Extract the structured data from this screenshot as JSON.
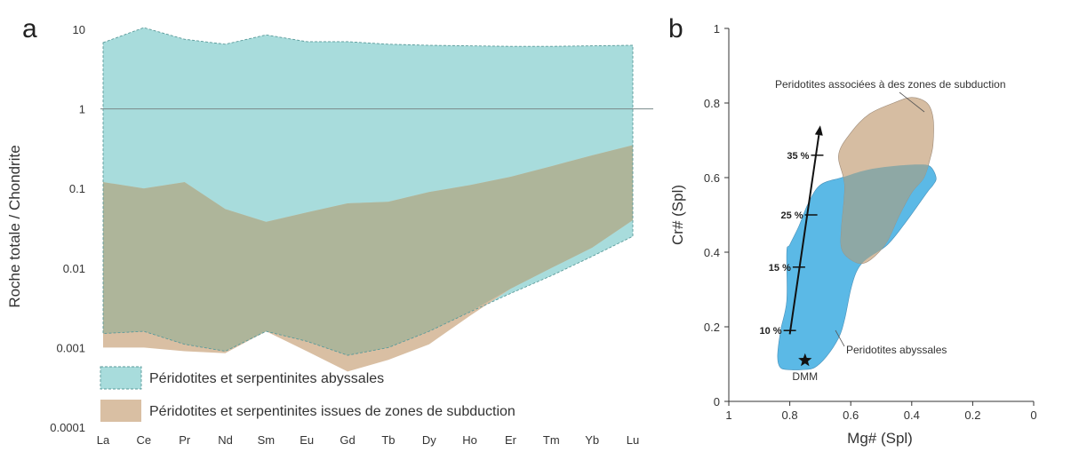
{
  "colors": {
    "abyssal_fill": "#a8dcdc",
    "abyssal_edge": "#5a9a9a",
    "subduction_fill": "#d9bfa3",
    "overlap_fill": "#aeb59a",
    "abyssal_b_fill": "#5bb9e6",
    "subduction_b_fill": "#d6bda2",
    "overlap_b_fill": "#8ea8a5",
    "reference_line": "#7a8a8a"
  },
  "panel_a": {
    "letter": "a",
    "chart_data": {
      "type": "area",
      "ylabel": "Roche totale / Chondrite",
      "xlabel": "",
      "yscale": "log",
      "ylim": [
        0.0001,
        10
      ],
      "yticks": [
        "10",
        "1",
        "0.1",
        "0.01",
        "0.001",
        "0.0001"
      ],
      "categories": [
        "La",
        "Ce",
        "Pr",
        "Nd",
        "Sm",
        "Eu",
        "Gd",
        "Tb",
        "Dy",
        "Ho",
        "Er",
        "Tm",
        "Yb",
        "Lu"
      ],
      "reference_line_y": 1,
      "series": [
        {
          "name": "Péridotites et serpentinites abyssales",
          "upper": [
            6.8,
            10.5,
            7.5,
            6.5,
            8.5,
            7,
            7,
            6.5,
            6.3,
            6.2,
            6.1,
            6.1,
            6.2,
            6.3
          ],
          "lower": [
            0.0015,
            0.0016,
            0.0011,
            0.0009,
            0.0016,
            0.0012,
            0.0008,
            0.001,
            0.0016,
            0.0028,
            0.0048,
            0.008,
            0.014,
            0.025
          ]
        },
        {
          "name": "Péridotites et serpentinites issues de zones de subduction",
          "upper": [
            0.12,
            0.1,
            0.12,
            0.055,
            0.038,
            0.05,
            0.065,
            0.068,
            0.09,
            0.11,
            0.14,
            0.19,
            0.26,
            0.35
          ],
          "lower": [
            0.001,
            0.001,
            0.0009,
            0.00085,
            0.0016,
            0.0009,
            0.0005,
            0.0007,
            0.0011,
            0.0025,
            0.0055,
            0.01,
            0.018,
            0.04
          ]
        }
      ],
      "legend": [
        "Péridotites et serpentinites abyssales",
        "Péridotites et serpentinites issues de zones de subduction"
      ],
      "legend_position": "bottom-left"
    }
  },
  "panel_b": {
    "letter": "b",
    "chart_data": {
      "type": "area",
      "xlabel": "Mg# (Spl)",
      "ylabel": "Cr# (Spl)",
      "xlim": [
        1,
        0
      ],
      "ylim": [
        0,
        1
      ],
      "xticks": [
        "1",
        "0.8",
        "0.6",
        "0.4",
        "0.2",
        "0"
      ],
      "yticks": [
        "0",
        "0.2",
        "0.4",
        "0.6",
        "0.8",
        "1"
      ],
      "fields": [
        {
          "name": "Peridotites abyssales",
          "outline": [
            [
              0.84,
              0.12
            ],
            [
              0.83,
              0.19
            ],
            [
              0.81,
              0.27
            ],
            [
              0.81,
              0.4
            ],
            [
              0.8,
              0.42
            ],
            [
              0.77,
              0.47
            ],
            [
              0.74,
              0.53
            ],
            [
              0.7,
              0.58
            ],
            [
              0.63,
              0.6
            ],
            [
              0.55,
              0.62
            ],
            [
              0.47,
              0.63
            ],
            [
              0.38,
              0.635
            ],
            [
              0.34,
              0.63
            ],
            [
              0.32,
              0.6
            ],
            [
              0.33,
              0.58
            ],
            [
              0.35,
              0.56
            ],
            [
              0.42,
              0.48
            ],
            [
              0.48,
              0.42
            ],
            [
              0.55,
              0.38
            ],
            [
              0.58,
              0.35
            ],
            [
              0.6,
              0.3
            ],
            [
              0.62,
              0.22
            ],
            [
              0.64,
              0.17
            ],
            [
              0.68,
              0.12
            ],
            [
              0.72,
              0.09
            ],
            [
              0.76,
              0.085
            ],
            [
              0.8,
              0.085
            ],
            [
              0.83,
              0.09
            ]
          ]
        },
        {
          "name": "Peridotites associées à des zones de subduction",
          "outline": [
            [
              0.63,
              0.47
            ],
            [
              0.62,
              0.58
            ],
            [
              0.64,
              0.66
            ],
            [
              0.6,
              0.72
            ],
            [
              0.54,
              0.77
            ],
            [
              0.46,
              0.8
            ],
            [
              0.4,
              0.815
            ],
            [
              0.35,
              0.8
            ],
            [
              0.33,
              0.76
            ],
            [
              0.33,
              0.69
            ],
            [
              0.34,
              0.65
            ],
            [
              0.36,
              0.6
            ],
            [
              0.4,
              0.56
            ],
            [
              0.44,
              0.5
            ],
            [
              0.48,
              0.43
            ],
            [
              0.52,
              0.39
            ],
            [
              0.56,
              0.37
            ],
            [
              0.6,
              0.38
            ],
            [
              0.63,
              0.41
            ]
          ]
        }
      ],
      "melting_arrow": {
        "from": [
          0.8,
          0.18
        ],
        "to": [
          0.7,
          0.74
        ],
        "ticks": [
          {
            "label": "10 %",
            "x": 0.8,
            "y": 0.19
          },
          {
            "label": "15 %",
            "x": 0.77,
            "y": 0.36
          },
          {
            "label": "25 %",
            "x": 0.73,
            "y": 0.5
          },
          {
            "label": "35 %",
            "x": 0.71,
            "y": 0.66
          }
        ]
      },
      "points": [
        {
          "label": "DMM",
          "x": 0.75,
          "y": 0.11,
          "marker": "star"
        }
      ],
      "annotations": [
        "Peridotites associées à des zones de subduction",
        "Peridotites abyssales"
      ]
    }
  }
}
